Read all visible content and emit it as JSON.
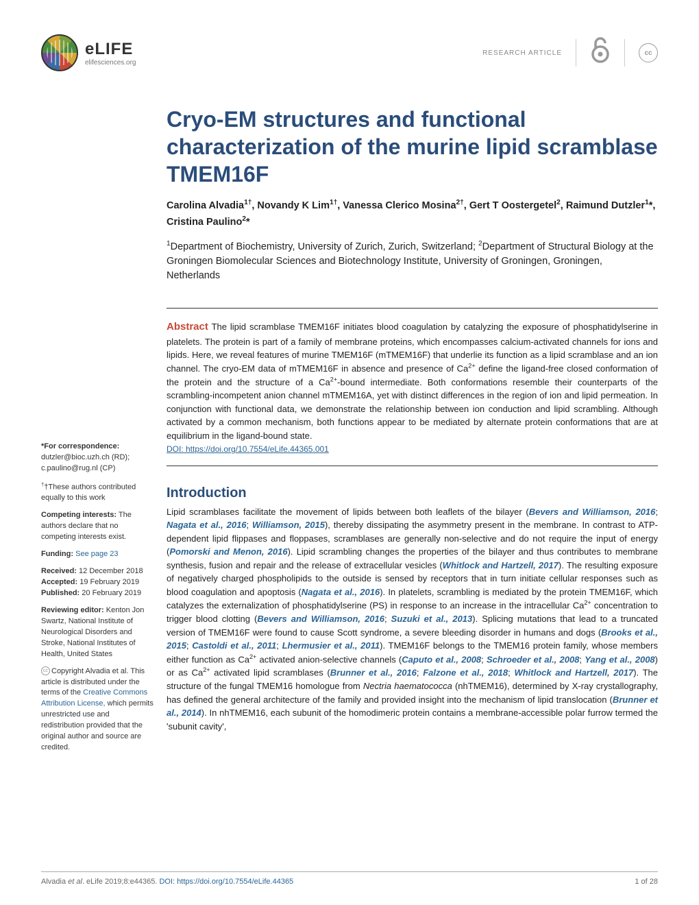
{
  "header": {
    "journal": "eLIFE",
    "url": "elifesciences.org",
    "article_type": "RESEARCH ARTICLE",
    "cc": "cc"
  },
  "title": "Cryo-EM structures and functional characterization of the murine lipid scramblase TMEM16F",
  "authors_html": "Carolina Alvadia<sup>1†</sup>, Novandy K Lim<sup>1†</sup>, Vanessa Clerico Mosina<sup>2†</sup>, Gert T Oostergetel<sup>2</sup>, Raimund Dutzler<sup>1</sup>*, Cristina Paulino<sup>2</sup>*",
  "affiliations_html": "<sup>1</sup>Department of Biochemistry, University of Zurich, Zurich, Switzerland; <sup>2</sup>Department of Structural Biology at the Groningen Biomolecular Sciences and Biotechnology Institute, University of Groningen, Groningen, Netherlands",
  "abstract": {
    "label": "Abstract",
    "text_html": "The lipid scramblase TMEM16F initiates blood coagulation by catalyzing the exposure of phosphatidylserine in platelets. The protein is part of a family of membrane proteins, which encompasses calcium-activated channels for ions and lipids. Here, we reveal features of murine TMEM16F (mTMEM16F) that underlie its function as a lipid scramblase and an ion channel. The cryo-EM data of mTMEM16F in absence and presence of Ca<sup>2+</sup> define the ligand-free closed conformation of the protein and the structure of a Ca<sup>2+</sup>-bound intermediate. Both conformations resemble their counterparts of the scrambling-incompetent anion channel mTMEM16A, yet with distinct differences in the region of ion and lipid permeation. In conjunction with functional data, we demonstrate the relationship between ion conduction and lipid scrambling. Although activated by a common mechanism, both functions appear to be mediated by alternate protein conformations that are at equilibrium in the ligand-bound state.",
    "doi_label": "DOI: https://doi.org/10.7554/eLife.44365.001"
  },
  "intro": {
    "heading": "Introduction",
    "body_html": "Lipid scramblases facilitate the movement of lipids between both leaflets of the bilayer (<span class='ref'>Bevers and Williamson, 2016</span>; <span class='ref'>Nagata et al., 2016</span>; <span class='ref'>Williamson, 2015</span>), thereby dissipating the asymmetry present in the membrane. In contrast to ATP-dependent lipid flippases and floppases, scramblases are generally non-selective and do not require the input of energy (<span class='ref'>Pomorski and Menon, 2016</span>). Lipid scrambling changes the properties of the bilayer and thus contributes to membrane synthesis, fusion and repair and the release of extracellular vesicles (<span class='ref'>Whitlock and Hartzell, 2017</span>). The resulting exposure of negatively charged phospholipids to the outside is sensed by receptors that in turn initiate cellular responses such as blood coagulation and apoptosis (<span class='ref'>Nagata et al., 2016</span>). In platelets, scrambling is mediated by the protein TMEM16F, which catalyzes the externalization of phosphatidylserine (PS) in response to an increase in the intracellular Ca<sup>2+</sup> concentration to trigger blood clotting (<span class='ref'>Bevers and Williamson, 2016</span>; <span class='ref'>Suzuki et al., 2013</span>). Splicing mutations that lead to a truncated version of TMEM16F were found to cause Scott syndrome, a severe bleeding disorder in humans and dogs (<span class='ref'>Brooks et al., 2015</span>; <span class='ref'>Castoldi et al., 2011</span>; <span class='ref'>Lhermusier et al., 2011</span>). TMEM16F belongs to the TMEM16 protein family, whose members either function as Ca<sup>2+</sup> activated anion-selective channels (<span class='ref'>Caputo et al., 2008</span>; <span class='ref'>Schroeder et al., 2008</span>; <span class='ref'>Yang et al., 2008</span>) or as Ca<sup>2+</sup> activated lipid scramblases (<span class='ref'>Brunner et al., 2016</span>; <span class='ref'>Falzone et al., 2018</span>; <span class='ref'>Whitlock and Hartzell, 2017</span>). The structure of the fungal TMEM16 homologue from <span class='ital'>Nectria haematococca</span> (nhTMEM16), determined by X-ray crystallography, has defined the general architecture of the family and provided insight into the mechanism of lipid translocation (<span class='ref'>Brunner et al., 2014</span>). In nhTMEM16, each subunit of the homodimeric protein contains a membrane-accessible polar furrow termed the 'subunit cavity',"
  },
  "sidebar": {
    "corr_label": "*For correspondence:",
    "corr_text": "dutzler@bioc.uzh.ch (RD); c.paulino@rug.nl (CP)",
    "equal": "†These authors contributed equally to this work",
    "competing_label": "Competing interests:",
    "competing_text": " The authors declare that no competing interests exist.",
    "funding_label": "Funding:",
    "funding_link": "See page 23",
    "received_label": "Received:",
    "received": " 12 December 2018",
    "accepted_label": "Accepted:",
    "accepted": " 19 February 2019",
    "published_label": "Published:",
    "published": " 20 February 2019",
    "reviewing_label": "Reviewing editor:",
    "reviewing": " Kenton Jon Swartz, National Institute of Neurological Disorders and Stroke, National Institutes of Health, United States",
    "copyright_html": "Copyright Alvadia et al. This article is distributed under the terms of the <a href='#'>Creative Commons Attribution License,</a> which permits unrestricted use and redistribution provided that the original author and source are credited."
  },
  "footer": {
    "citation_html": "Alvadia <span class='fital'>et al</span>. eLife 2019;8:e44365. <a href='#'>DOI: https://doi.org/10.7554/eLife.44365</a>",
    "page": "1 of 28"
  }
}
